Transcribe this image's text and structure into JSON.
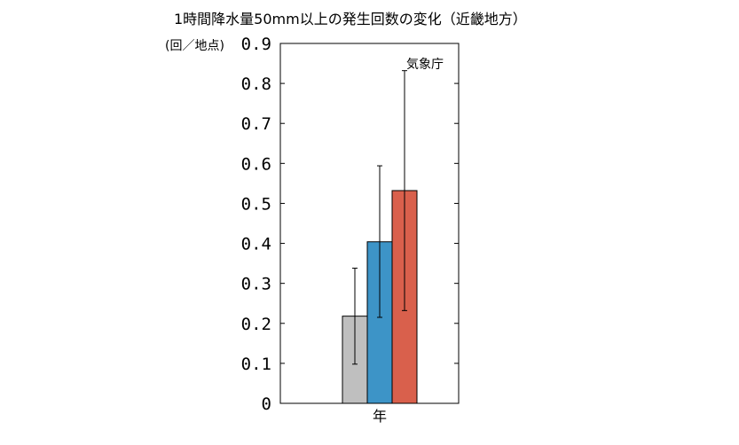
{
  "chart_data": {
    "type": "bar",
    "title": "1時間降水量50mm以上の発生回数の変化（近畿地方）",
    "ylabel": "(回／地点)",
    "xlabel": "",
    "source_label": "気象庁",
    "categories": [
      "年"
    ],
    "ylim": [
      0,
      0.9
    ],
    "yticks": [
      0,
      0.1,
      0.2,
      0.3,
      0.4,
      0.5,
      0.6,
      0.7,
      0.8,
      0.9
    ],
    "ytick_labels": [
      "0",
      "0.1",
      "0.2",
      "0.3",
      "0.4",
      "0.5",
      "0.6",
      "0.7",
      "0.8",
      "0.9"
    ],
    "grid": false,
    "series": [
      {
        "values": [
          0.218
        ],
        "error_low": [
          0.098
        ],
        "error_high": [
          0.338
        ],
        "color": "#bfbfbf"
      },
      {
        "values": [
          0.404
        ],
        "error_low": [
          0.215
        ],
        "error_high": [
          0.594
        ],
        "color": "#3d94c7"
      },
      {
        "values": [
          0.532
        ],
        "error_low": [
          0.232
        ],
        "error_high": [
          0.832
        ],
        "color": "#d9604c"
      }
    ]
  }
}
